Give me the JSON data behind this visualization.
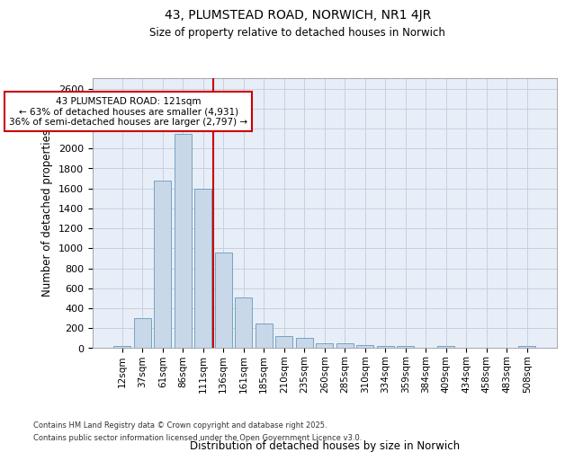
{
  "title": "43, PLUMSTEAD ROAD, NORWICH, NR1 4JR",
  "subtitle": "Size of property relative to detached houses in Norwich",
  "xlabel": "Distribution of detached houses by size in Norwich",
  "ylabel": "Number of detached properties",
  "footnote1": "Contains HM Land Registry data © Crown copyright and database right 2025.",
  "footnote2": "Contains public sector information licensed under the Open Government Licence v3.0.",
  "categories": [
    "12sqm",
    "37sqm",
    "61sqm",
    "86sqm",
    "111sqm",
    "136sqm",
    "161sqm",
    "185sqm",
    "210sqm",
    "235sqm",
    "260sqm",
    "285sqm",
    "310sqm",
    "334sqm",
    "359sqm",
    "384sqm",
    "409sqm",
    "434sqm",
    "458sqm",
    "483sqm",
    "508sqm"
  ],
  "values": [
    25,
    300,
    1675,
    2150,
    1600,
    960,
    505,
    245,
    120,
    100,
    50,
    50,
    30,
    20,
    25,
    5,
    25,
    5,
    5,
    5,
    20
  ],
  "bar_color": "#c8d8e8",
  "bar_edge_color": "#6699bb",
  "bg_color": "#e8eef8",
  "grid_color": "#c8d0e0",
  "vline_color": "#cc0000",
  "annotation_title": "43 PLUMSTEAD ROAD: 121sqm",
  "annotation_line1": "← 63% of detached houses are smaller (4,931)",
  "annotation_line2": "36% of semi-detached houses are larger (2,797) →",
  "annotation_box_color": "#cc0000",
  "ylim": [
    0,
    2700
  ],
  "yticks": [
    0,
    200,
    400,
    600,
    800,
    1000,
    1200,
    1400,
    1600,
    1800,
    2000,
    2200,
    2400,
    2600
  ]
}
